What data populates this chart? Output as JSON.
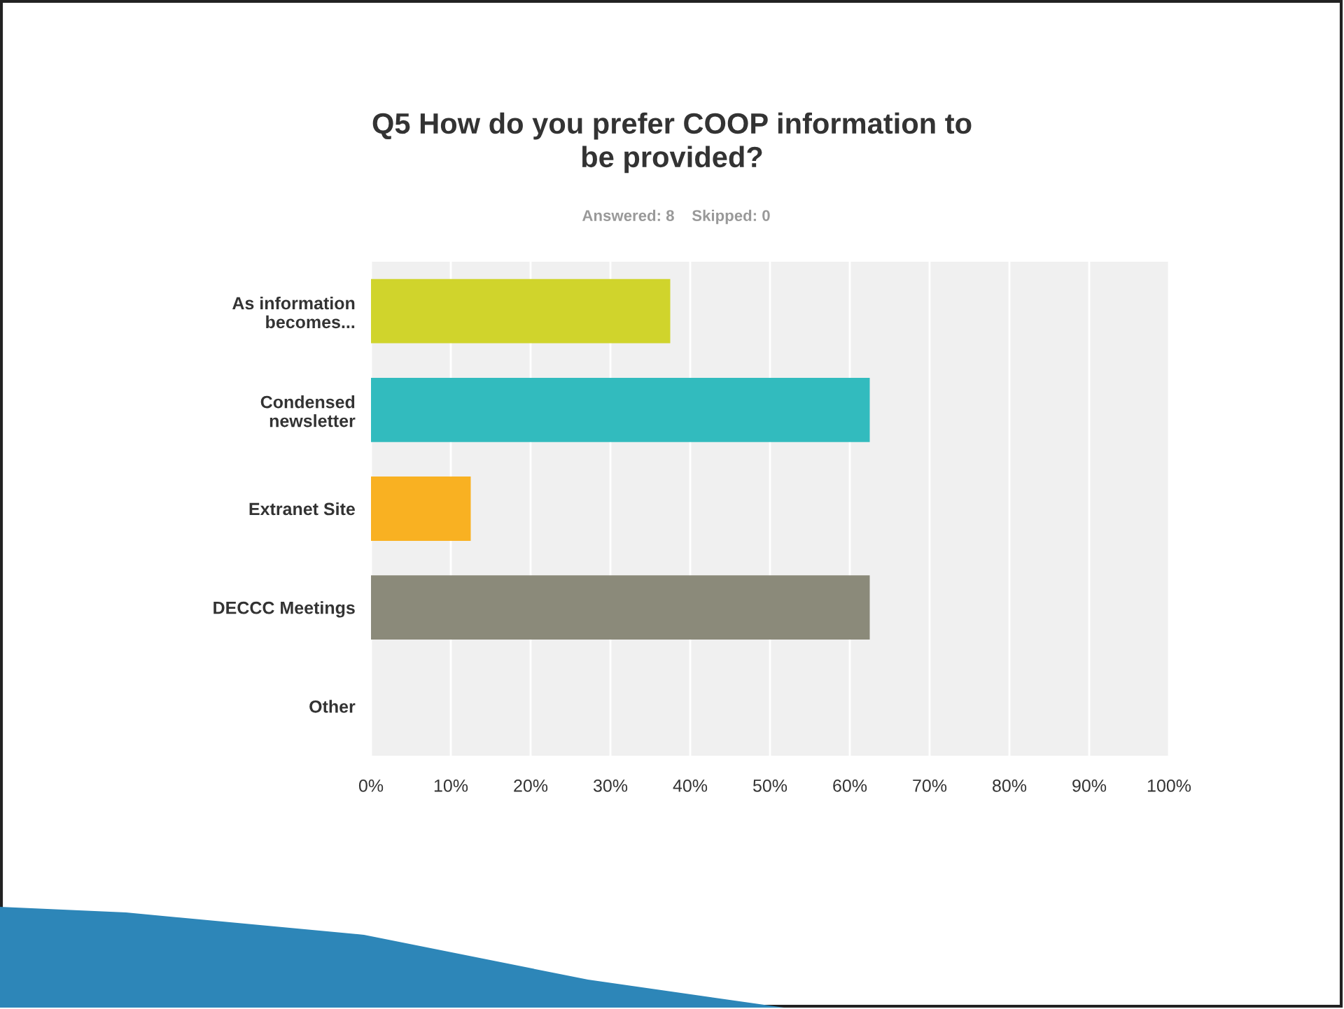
{
  "chart_data": {
    "type": "bar",
    "orientation": "horizontal",
    "title": "Q5 How do you prefer COOP information to\nbe provided?",
    "subtitle": "Answered: 8    Skipped: 0",
    "categories": [
      "As information\nbecomes...",
      "Condensed\nnewsletter",
      "Extranet Site",
      "DECCC Meetings",
      "Other"
    ],
    "values": [
      37.5,
      62.5,
      12.5,
      62.5,
      0
    ],
    "colors": [
      "#d0d42c",
      "#32bbbe",
      "#f9b122",
      "#8b8a7a",
      "#8b8a7a"
    ],
    "xlim": [
      0,
      100
    ],
    "xticks": [
      {
        "value": 0,
        "label": "0%"
      },
      {
        "value": 10,
        "label": "10%"
      },
      {
        "value": 20,
        "label": "20%"
      },
      {
        "value": 30,
        "label": "30%"
      },
      {
        "value": 40,
        "label": "40%"
      },
      {
        "value": 50,
        "label": "50%"
      },
      {
        "value": 60,
        "label": "60%"
      },
      {
        "value": 70,
        "label": "70%"
      },
      {
        "value": 80,
        "label": "80%"
      },
      {
        "value": 90,
        "label": "90%"
      },
      {
        "value": 100,
        "label": "100%"
      }
    ],
    "grid": "x"
  }
}
